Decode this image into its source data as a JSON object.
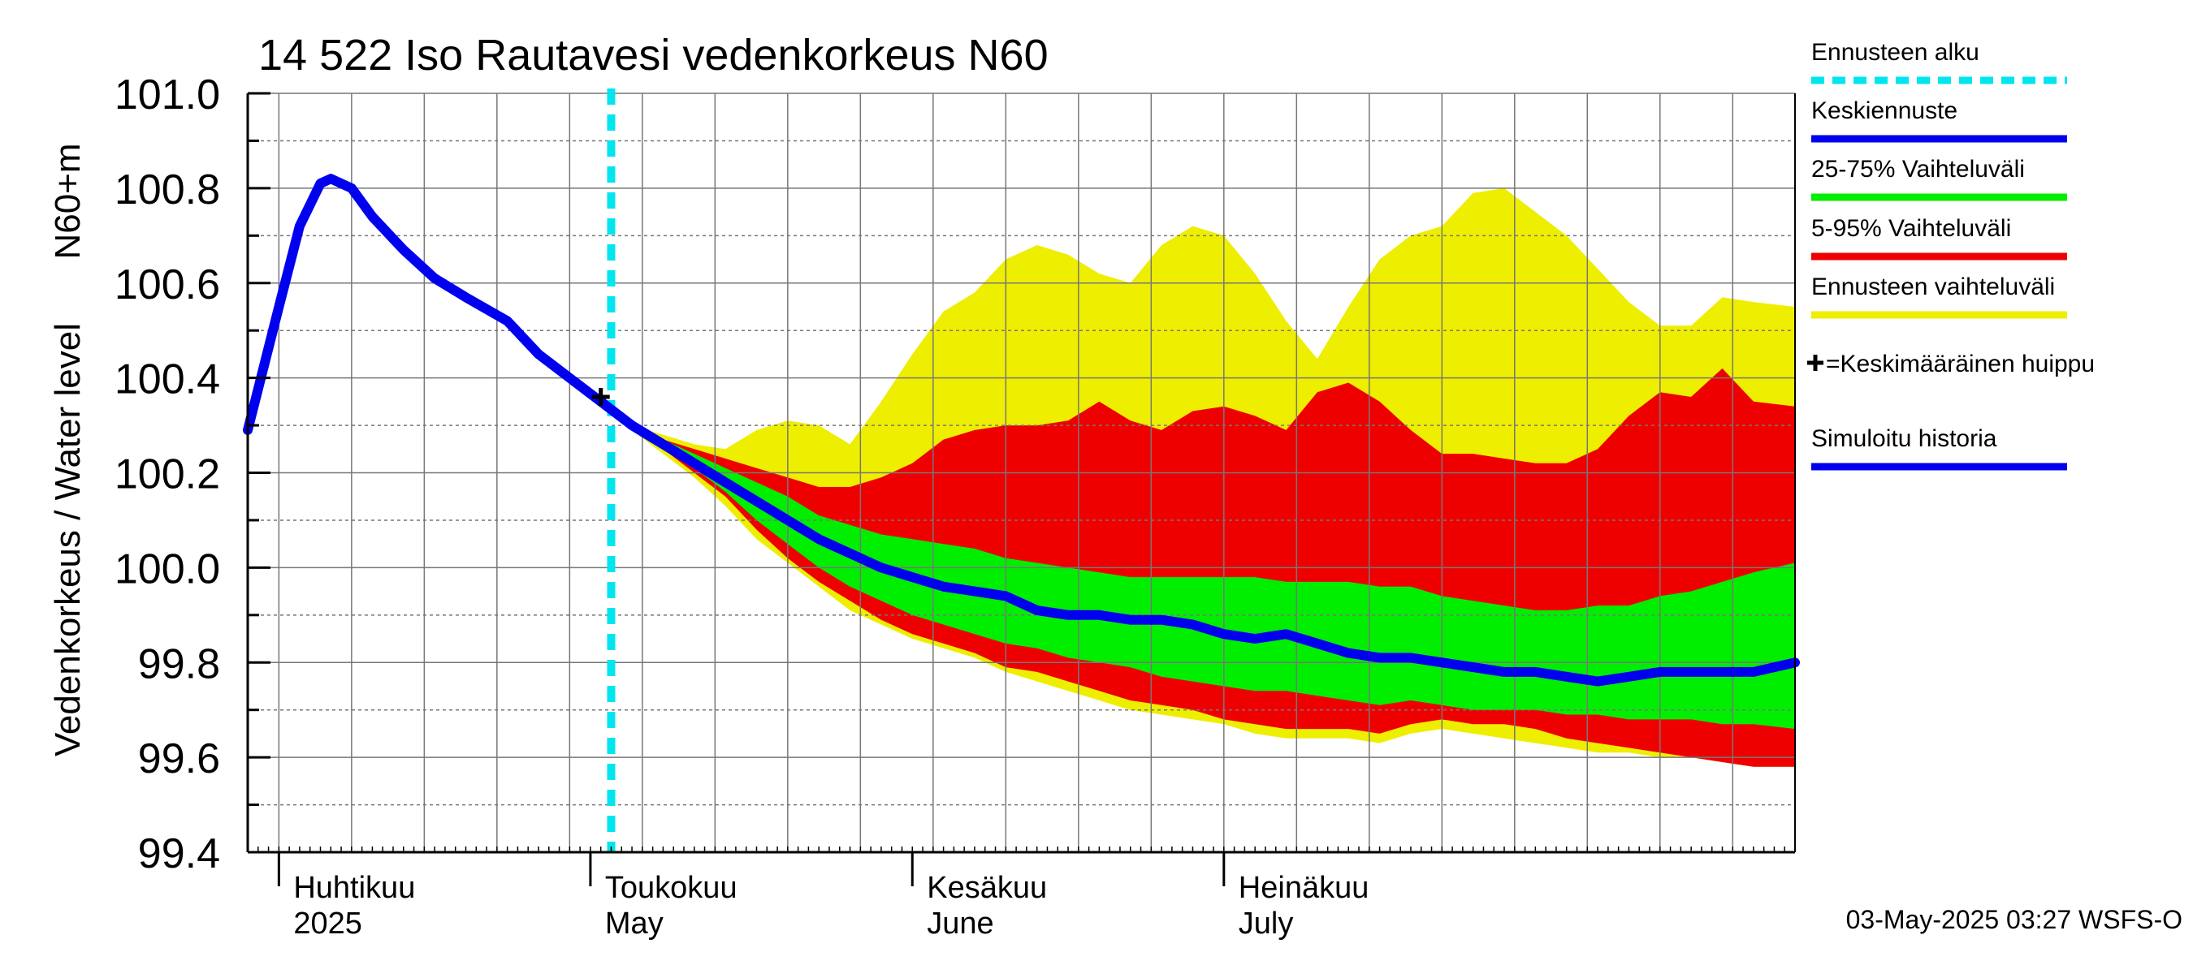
{
  "chart_data": {
    "type": "area",
    "title": "14 522 Iso Rautavesi vedenkorkeus N60",
    "ylabel": "Vedenkorkeus / Water level",
    "yunit": "N60+m",
    "ylim": [
      99.4,
      101.0
    ],
    "yticks": [
      "99.4",
      "99.6",
      "99.8",
      "100.0",
      "100.2",
      "100.4",
      "100.6",
      "100.8",
      "101.0"
    ],
    "xlim": [
      "2025-03-29",
      "2025-08-25"
    ],
    "grid": true,
    "legend_position": "right",
    "month_labels": [
      {
        "date": "2025-04-01",
        "fi": "Huhtikuu",
        "en": "2025"
      },
      {
        "date": "2025-05-01",
        "fi": "Toukokuu",
        "en": "May"
      },
      {
        "date": "2025-06-01",
        "fi": "Kesäkuu",
        "en": "June"
      },
      {
        "date": "2025-07-01",
        "fi": "Heinäkuu",
        "en": "July"
      }
    ],
    "forecast_start": "2025-05-03",
    "peak_marker": {
      "date": "2025-05-02",
      "value": 100.36
    },
    "footer": "03-May-2025 03:27 WSFS-O",
    "legend": [
      {
        "label": "Ennusteen alku",
        "color": "#00e5ee",
        "style": "dashed"
      },
      {
        "label": "Keskiennuste",
        "color": "#0000ee",
        "style": "solid"
      },
      {
        "label": "25-75% Vaihteluväli",
        "color": "#00ee00",
        "style": "solid"
      },
      {
        "label": "5-95% Vaihteluväli",
        "color": "#ee0000",
        "style": "solid"
      },
      {
        "label": "Ennusteen vaihteluväli",
        "color": "#eeee00",
        "style": "solid"
      },
      {
        "label": "=Keskimääräinen huippu",
        "color": "#000000",
        "style": "plus"
      },
      {
        "label": "Simuloitu historia",
        "color": "#0000ee",
        "style": "solid"
      }
    ],
    "history": {
      "name": "Simuloitu historia",
      "x": [
        "2025-03-29",
        "2025-04-01",
        "2025-04-03",
        "2025-04-05",
        "2025-04-06",
        "2025-04-08",
        "2025-04-10",
        "2025-04-13",
        "2025-04-16",
        "2025-04-19",
        "2025-04-23",
        "2025-04-26",
        "2025-04-29",
        "2025-05-02"
      ],
      "values": [
        100.29,
        100.55,
        100.72,
        100.81,
        100.82,
        100.8,
        100.74,
        100.67,
        100.61,
        100.57,
        100.52,
        100.45,
        100.4,
        100.35
      ]
    },
    "forecast_x": [
      "2025-05-02",
      "2025-05-05",
      "2025-05-08",
      "2025-05-11",
      "2025-05-14",
      "2025-05-17",
      "2025-05-20",
      "2025-05-23",
      "2025-05-26",
      "2025-05-29",
      "2025-06-01",
      "2025-06-04",
      "2025-06-07",
      "2025-06-10",
      "2025-06-13",
      "2025-06-16",
      "2025-06-19",
      "2025-06-22",
      "2025-06-25",
      "2025-06-28",
      "2025-07-01",
      "2025-07-04",
      "2025-07-07",
      "2025-07-10",
      "2025-07-13",
      "2025-07-16",
      "2025-07-19",
      "2025-07-22",
      "2025-07-25",
      "2025-07-28",
      "2025-07-31",
      "2025-08-03",
      "2025-08-06",
      "2025-08-09",
      "2025-08-12",
      "2025-08-15",
      "2025-08-18",
      "2025-08-21",
      "2025-08-25"
    ],
    "series": [
      {
        "name": "Ennusteen vaihteluväli",
        "kind": "band",
        "color": "#eeee00",
        "upper": [
          100.35,
          100.3,
          100.28,
          100.26,
          100.25,
          100.29,
          100.31,
          100.3,
          100.26,
          100.35,
          100.45,
          100.54,
          100.58,
          100.65,
          100.68,
          100.66,
          100.62,
          100.6,
          100.68,
          100.72,
          100.7,
          100.62,
          100.52,
          100.44,
          100.55,
          100.65,
          100.7,
          100.72,
          100.79,
          100.8,
          100.75,
          100.7,
          100.63,
          100.56,
          100.51,
          100.51,
          100.57,
          100.56,
          100.55
        ],
        "lower": [
          100.35,
          100.29,
          100.24,
          100.19,
          100.13,
          100.06,
          100.01,
          99.96,
          99.91,
          99.88,
          99.85,
          99.83,
          99.81,
          99.78,
          99.76,
          99.74,
          99.72,
          99.7,
          99.69,
          99.68,
          99.67,
          99.65,
          99.64,
          99.64,
          99.64,
          99.63,
          99.65,
          99.66,
          99.65,
          99.64,
          99.63,
          99.62,
          99.61,
          99.61,
          99.6,
          99.6,
          99.59,
          99.58,
          99.58
        ]
      },
      {
        "name": "5-95% Vaihteluväli",
        "kind": "band",
        "color": "#ee0000",
        "upper": [
          100.35,
          100.3,
          100.27,
          100.25,
          100.23,
          100.21,
          100.19,
          100.17,
          100.17,
          100.19,
          100.22,
          100.27,
          100.29,
          100.3,
          100.3,
          100.31,
          100.35,
          100.31,
          100.29,
          100.33,
          100.34,
          100.32,
          100.29,
          100.37,
          100.39,
          100.35,
          100.29,
          100.24,
          100.24,
          100.23,
          100.22,
          100.22,
          100.25,
          100.32,
          100.37,
          100.36,
          100.42,
          100.35,
          100.34
        ],
        "lower": [
          100.35,
          100.29,
          100.25,
          100.2,
          100.15,
          100.08,
          100.02,
          99.97,
          99.93,
          99.89,
          99.86,
          99.84,
          99.82,
          99.79,
          99.78,
          99.76,
          99.74,
          99.72,
          99.71,
          99.7,
          99.68,
          99.67,
          99.66,
          99.66,
          99.66,
          99.65,
          99.67,
          99.68,
          99.67,
          99.67,
          99.66,
          99.64,
          99.63,
          99.62,
          99.61,
          99.6,
          99.59,
          99.58,
          99.58
        ]
      },
      {
        "name": "25-75% Vaihteluväli",
        "kind": "band",
        "color": "#00ee00",
        "upper": [
          100.35,
          100.3,
          100.27,
          100.24,
          100.21,
          100.18,
          100.15,
          100.11,
          100.09,
          100.07,
          100.06,
          100.05,
          100.04,
          100.02,
          100.01,
          100.0,
          99.99,
          99.98,
          99.98,
          99.98,
          99.98,
          99.98,
          99.97,
          99.97,
          99.97,
          99.96,
          99.96,
          99.94,
          99.93,
          99.92,
          99.91,
          99.91,
          99.92,
          99.92,
          99.94,
          99.95,
          99.97,
          99.99,
          100.01
        ],
        "lower": [
          100.35,
          100.29,
          100.25,
          100.21,
          100.16,
          100.1,
          100.05,
          100.0,
          99.96,
          99.93,
          99.9,
          99.88,
          99.86,
          99.84,
          99.83,
          99.81,
          99.8,
          99.79,
          99.77,
          99.76,
          99.75,
          99.74,
          99.74,
          99.73,
          99.72,
          99.71,
          99.72,
          99.71,
          99.7,
          99.7,
          99.7,
          99.69,
          99.69,
          99.68,
          99.68,
          99.68,
          99.67,
          99.67,
          99.66
        ]
      },
      {
        "name": "Keskiennuste",
        "kind": "line",
        "color": "#0000ee",
        "values": [
          100.35,
          100.3,
          100.26,
          100.22,
          100.18,
          100.14,
          100.1,
          100.06,
          100.03,
          100.0,
          99.98,
          99.96,
          99.95,
          99.94,
          99.91,
          99.9,
          99.9,
          99.89,
          99.89,
          99.88,
          99.86,
          99.85,
          99.86,
          99.84,
          99.82,
          99.81,
          99.81,
          99.8,
          99.79,
          99.78,
          99.78,
          99.77,
          99.76,
          99.77,
          99.78,
          99.78,
          99.78,
          99.78,
          99.8
        ]
      }
    ]
  }
}
